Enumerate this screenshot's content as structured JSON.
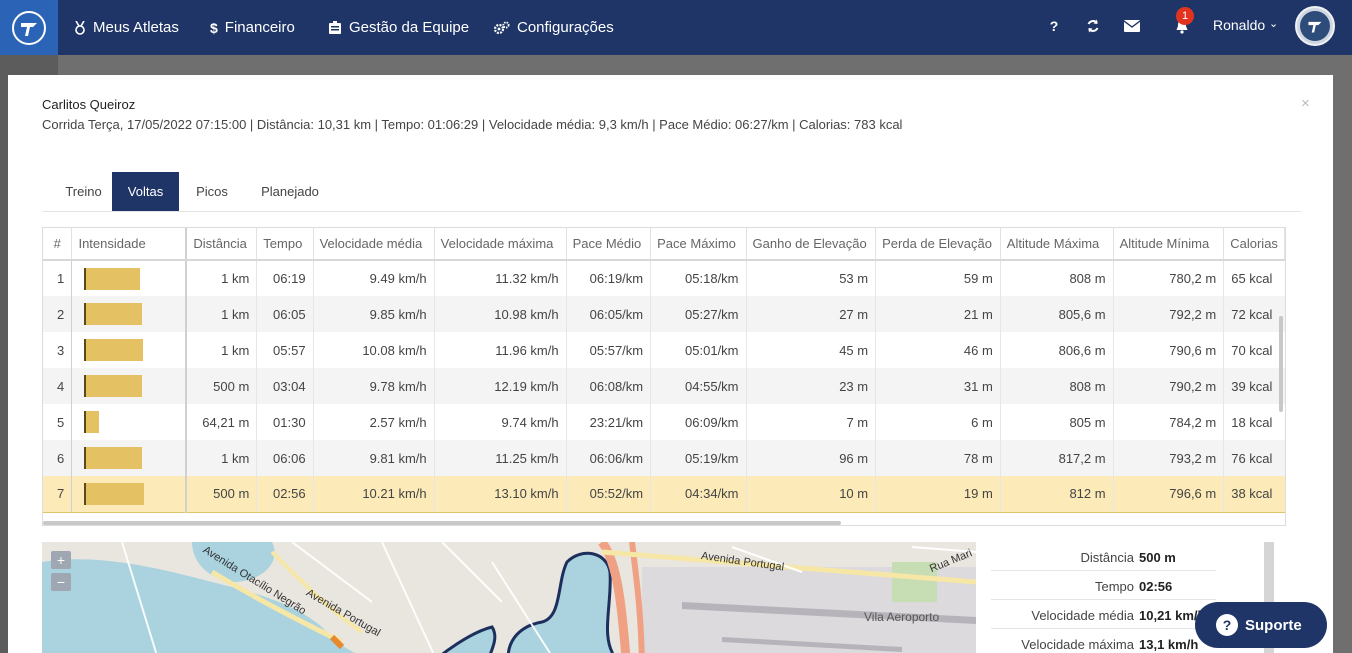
{
  "nav": {
    "items": [
      {
        "label": "Meus Atletas",
        "icon": "medal-icon"
      },
      {
        "label": "Financeiro",
        "icon": "dollar-icon"
      },
      {
        "label": "Gestão da Equipe",
        "icon": "id-card-icon"
      },
      {
        "label": "Configurações",
        "icon": "gears-icon"
      }
    ],
    "notification_count": "1",
    "user_name": "Ronaldo"
  },
  "modal": {
    "athlete": "Carlitos Queiroz",
    "summary": "Corrida Terça, 17/05/2022 07:15:00 | Distância: 10,31 km | Tempo: 01:06:29 | Velocidade média: 9,3 km/h | Pace Médio: 06:27/km | Calorias: 783 kcal",
    "close": "×"
  },
  "tabs": [
    "Treino",
    "Voltas",
    "Picos",
    "Planejado"
  ],
  "active_tab": "Voltas",
  "table": {
    "headers": [
      "#",
      "Intensidade",
      "Distância",
      "Tempo",
      "Velocidade média",
      "Velocidade máxima",
      "Pace Médio",
      "Pace Máximo",
      "Ganho de Elevação",
      "Perda de Elevação",
      "Altitude Máxima",
      "Altitude Mínima",
      "Calorias"
    ],
    "rows": [
      {
        "num": "1",
        "intensity": 0.93,
        "dist": "1 km",
        "time": "06:19",
        "vavg": "9.49 km/h",
        "vmax": "11.32 km/h",
        "pavg": "06:19/km",
        "pmax": "05:18/km",
        "gain": "53 m",
        "loss": "59 m",
        "altmax": "808 m",
        "altmin": "780,2 m",
        "cal": "65 kcal"
      },
      {
        "num": "2",
        "intensity": 0.96,
        "dist": "1 km",
        "time": "06:05",
        "vavg": "9.85 km/h",
        "vmax": "10.98 km/h",
        "pavg": "06:05/km",
        "pmax": "05:27/km",
        "gain": "27 m",
        "loss": "21 m",
        "altmax": "805,6 m",
        "altmin": "792,2 m",
        "cal": "72 kcal"
      },
      {
        "num": "3",
        "intensity": 0.99,
        "dist": "1 km",
        "time": "05:57",
        "vavg": "10.08 km/h",
        "vmax": "11.96 km/h",
        "pavg": "05:57/km",
        "pmax": "05:01/km",
        "gain": "45 m",
        "loss": "46 m",
        "altmax": "806,6 m",
        "altmin": "790,6 m",
        "cal": "70 kcal"
      },
      {
        "num": "4",
        "intensity": 0.96,
        "dist": "500 m",
        "time": "03:04",
        "vavg": "9.78 km/h",
        "vmax": "12.19 km/h",
        "pavg": "06:08/km",
        "pmax": "04:55/km",
        "gain": "23 m",
        "loss": "31 m",
        "altmax": "808 m",
        "altmin": "790,2 m",
        "cal": "39 kcal"
      },
      {
        "num": "5",
        "intensity": 0.25,
        "dist": "64,21 m",
        "time": "01:30",
        "vavg": "2.57 km/h",
        "vmax": "9.74 km/h",
        "pavg": "23:21/km",
        "pmax": "06:09/km",
        "gain": "7 m",
        "loss": "6 m",
        "altmax": "805 m",
        "altmin": "784,2 m",
        "cal": "18 kcal"
      },
      {
        "num": "6",
        "intensity": 0.96,
        "dist": "1 km",
        "time": "06:06",
        "vavg": "9.81 km/h",
        "vmax": "11.25 km/h",
        "pavg": "06:06/km",
        "pmax": "05:19/km",
        "gain": "96 m",
        "loss": "78 m",
        "altmax": "817,2 m",
        "altmin": "793,2 m",
        "cal": "76 kcal"
      },
      {
        "num": "7",
        "intensity": 1.0,
        "dist": "500 m",
        "time": "02:56",
        "vavg": "10.21 km/h",
        "vmax": "13.10 km/h",
        "pavg": "05:52/km",
        "pmax": "04:34/km",
        "gain": "10 m",
        "loss": "19 m",
        "altmax": "812 m",
        "altmin": "796,6 m",
        "cal": "38 kcal"
      }
    ],
    "selected_row": "7"
  },
  "map": {
    "zoom_in": "+",
    "zoom_out": "−",
    "labels": [
      "Avenida Otacílio Negrão",
      "Avenida Portugal",
      "Avenida Portugal",
      "Vila Aeroporto",
      "Rua Mari"
    ]
  },
  "lap_details": [
    {
      "label": "Distância",
      "value": "500 m"
    },
    {
      "label": "Tempo",
      "value": "02:56"
    },
    {
      "label": "Velocidade média",
      "value": "10,21 km/h"
    },
    {
      "label": "Velocidade máxima",
      "value": "13,1 km/h"
    }
  ],
  "support": {
    "label": "Suporte"
  },
  "colors": {
    "navbar": "#1f3568",
    "logo_bg": "#2b64b6",
    "intensity": "#e4c264",
    "selected_row": "#fcebb8",
    "badge": "#e2331f"
  }
}
